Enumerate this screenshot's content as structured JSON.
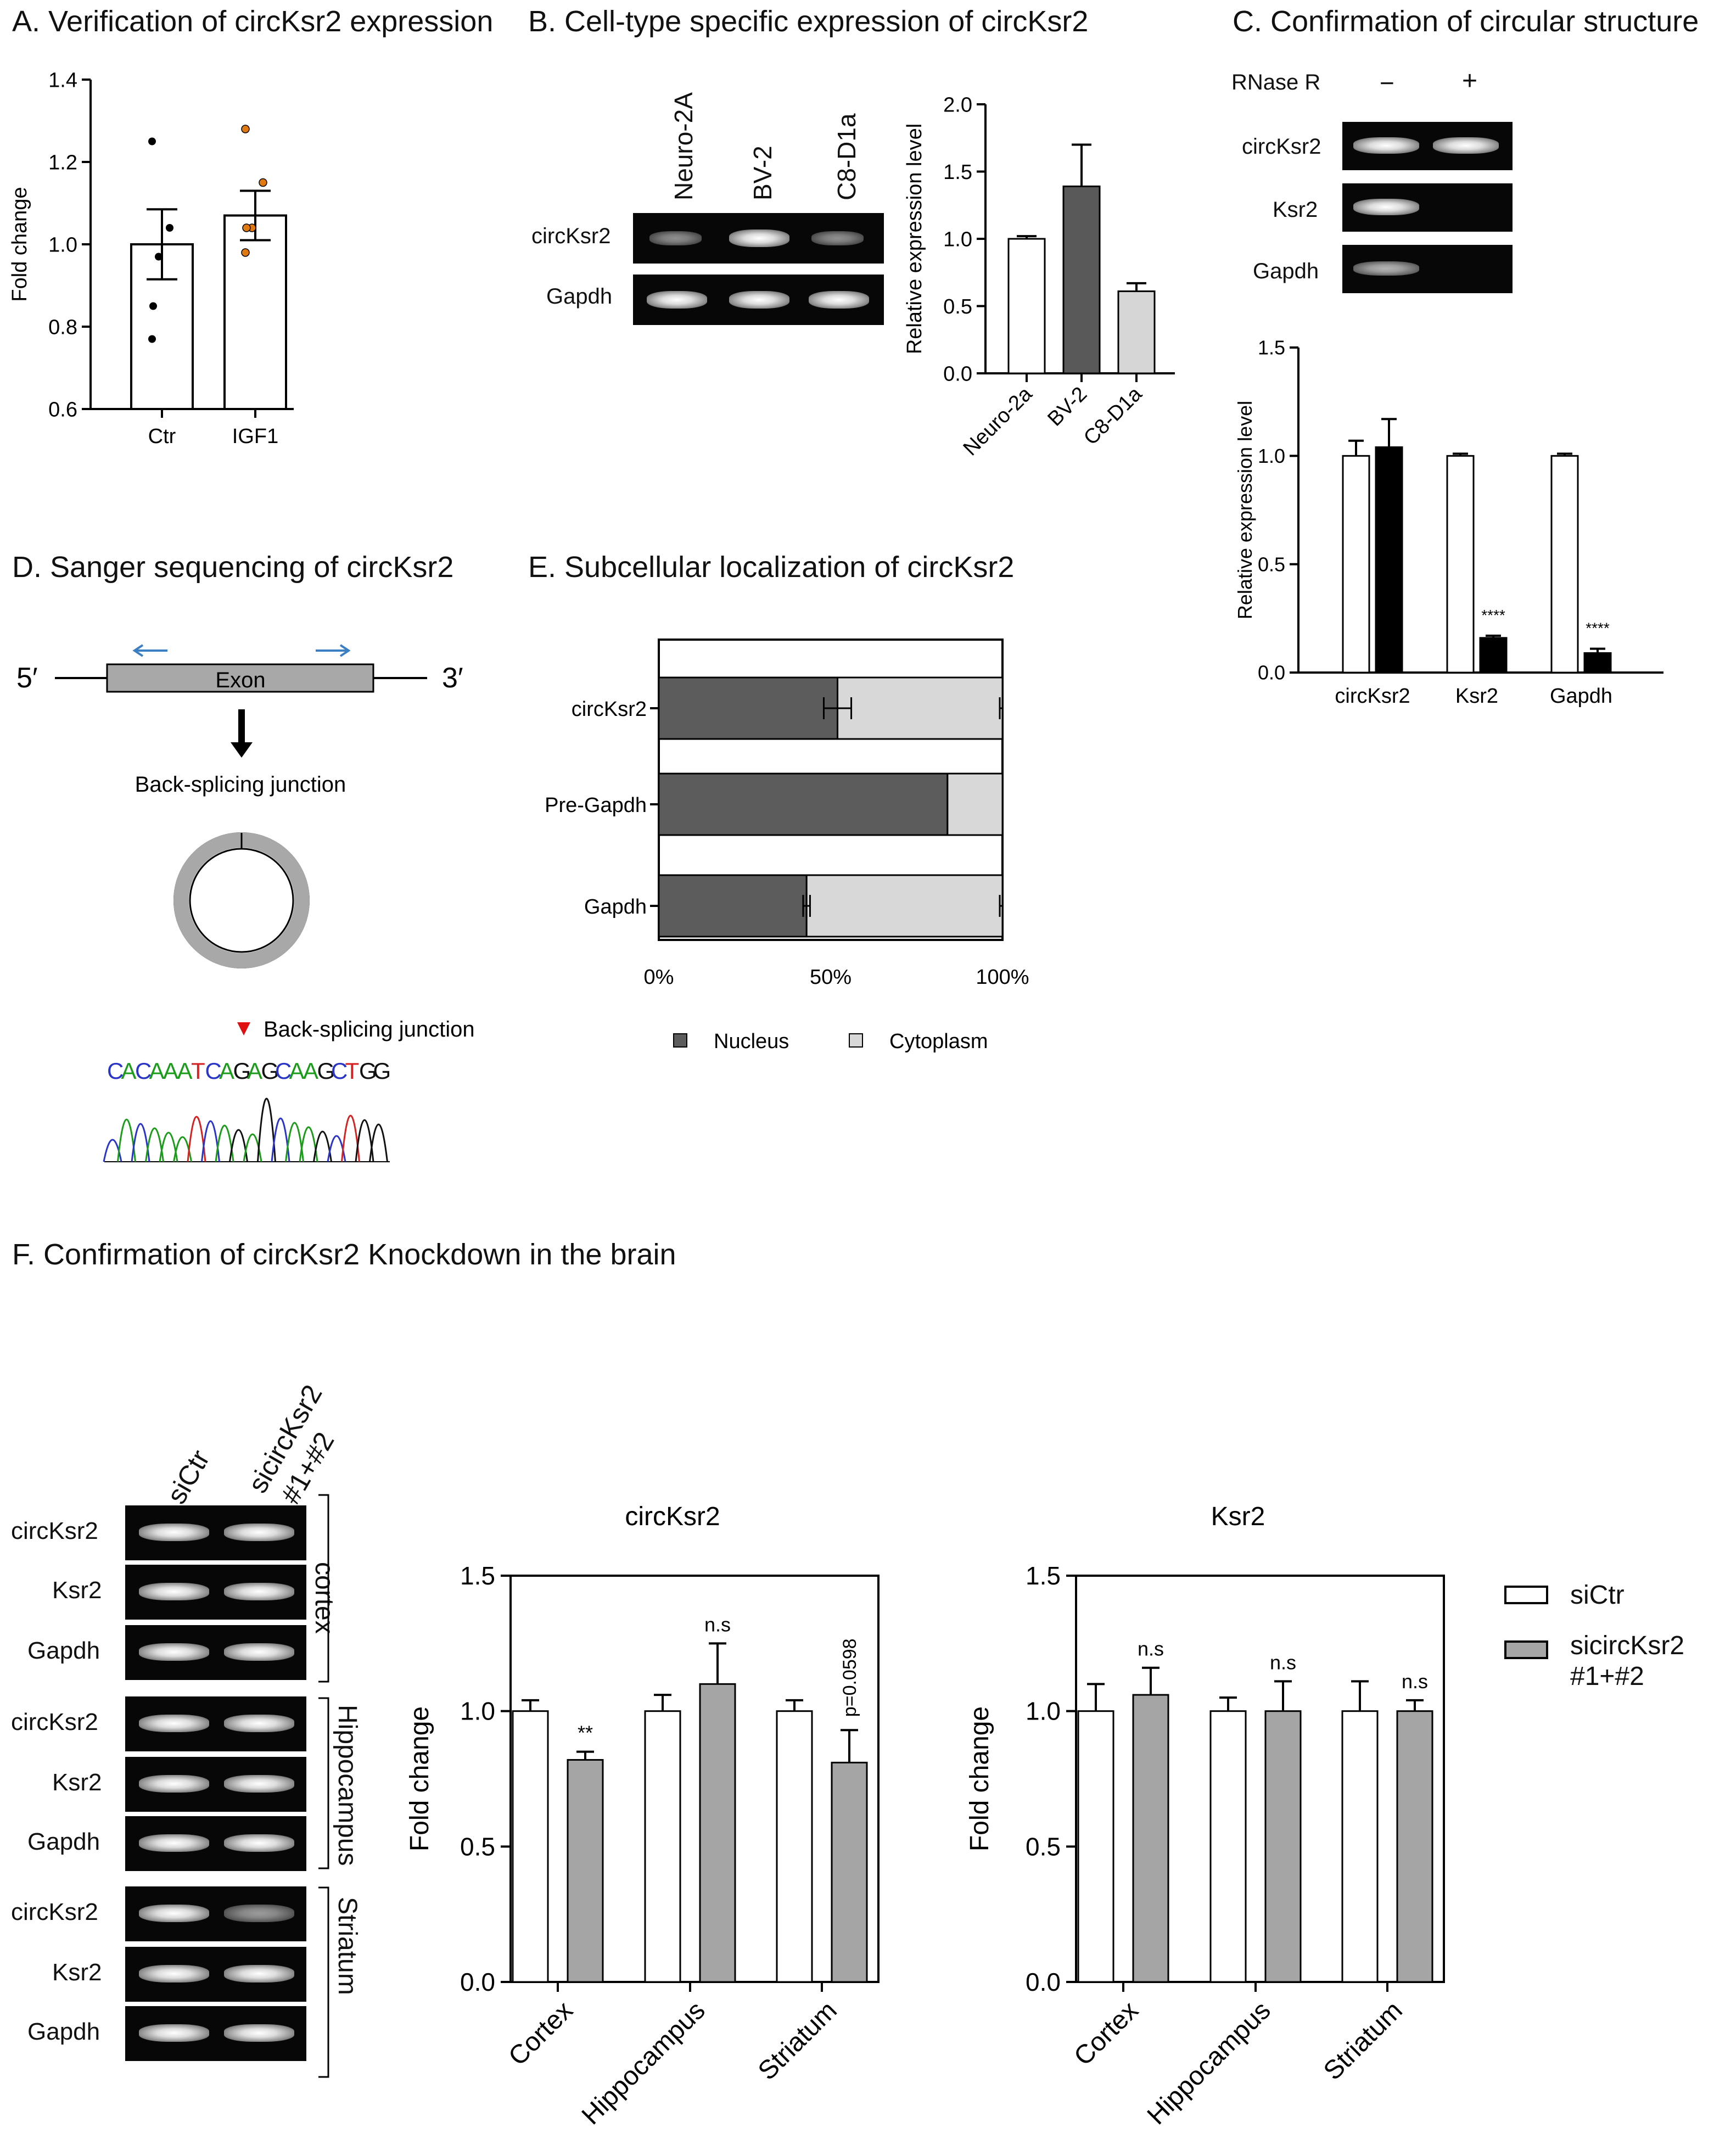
{
  "panels": {
    "A": {
      "title": "A. Verification of circKsr2 expression"
    },
    "B": {
      "title": "B. Cell-type specific expression of circKsr2"
    },
    "C": {
      "title": "C. Confirmation of circular structure"
    },
    "D": {
      "title": "D. Sanger sequencing of circKsr2"
    },
    "E": {
      "title": "E. Subcellular localization of circKsr2"
    },
    "F": {
      "title": "F. Confirmation of circKsr2 Knockdown in the brain"
    }
  },
  "gel_b": {
    "lanes": [
      "Neuro-2A",
      "BV-2",
      "C8-D1a"
    ],
    "rows": [
      "circKsr2",
      "Gapdh"
    ]
  },
  "gel_c": {
    "treatment_label": "RNase R",
    "minus": "−",
    "plus": "+",
    "rows": [
      "circKsr2",
      "Ksr2",
      "Gapdh"
    ]
  },
  "schematic": {
    "five_prime": "5′",
    "three_prime": "3′",
    "exon": "Exon",
    "junction_label": "Back-splicing junction",
    "junction_label2": "Back-splicing junction",
    "sequence": [
      "C",
      "A",
      "C",
      "A",
      "A",
      "A",
      "T",
      "C",
      "A",
      "G",
      "A",
      "G",
      "C",
      "A",
      "A",
      "G",
      "C",
      "T",
      "G",
      "G"
    ],
    "base_colors": {
      "A": "#1a9c1a",
      "C": "#2a35c8",
      "G": "#111111",
      "T": "#d42222"
    }
  },
  "gel_f": {
    "lanes": [
      "siCtr",
      "sicircKsr2",
      "#1+#2"
    ],
    "rows": [
      "circKsr2",
      "Ksr2",
      "Gapdh",
      "circKsr2",
      "Ksr2",
      "Gapdh",
      "circKsr2",
      "Ksr2",
      "Gapdh"
    ],
    "regions": [
      "cortex",
      "Hippocampus",
      "Striatum"
    ]
  },
  "legend_f": {
    "items": [
      "siCtr",
      "sicircKsr2",
      "#1+#2"
    ]
  },
  "chart_data": [
    {
      "id": "A",
      "type": "bar",
      "title": "A. Verification of circKsr2 expression",
      "categories": [
        "Ctr",
        "IGF1"
      ],
      "values": [
        1.0,
        1.07
      ],
      "errors": [
        0.085,
        0.06
      ],
      "points": [
        [
          1.25,
          1.04,
          0.97,
          0.85,
          0.77
        ],
        [
          1.28,
          1.15,
          1.04,
          1.04,
          0.98
        ]
      ],
      "point_colors": [
        "#000000",
        "#e07a10"
      ],
      "ylabel": "Fold change",
      "xlabel": "",
      "ylim": [
        0.6,
        1.4
      ],
      "yticks": [
        "0.6",
        "0.8",
        "1.0",
        "1.2",
        "1.4"
      ]
    },
    {
      "id": "B",
      "type": "bar",
      "categories": [
        "Neuro-2a",
        "BV-2",
        "C8-D1a"
      ],
      "values": [
        1.0,
        1.39,
        0.61
      ],
      "errors": [
        0.02,
        0.31,
        0.06
      ],
      "colors": [
        "#ffffff",
        "#595959",
        "#d6d6d6"
      ],
      "ylabel": "Relative expression level",
      "ylim": [
        0,
        2.0
      ],
      "yticks": [
        "0.0",
        "0.5",
        "1.0",
        "1.5",
        "2.0"
      ]
    },
    {
      "id": "C",
      "type": "bar",
      "categories": [
        "circKsr2",
        "Ksr2",
        "Gapdh"
      ],
      "series": [
        {
          "name": "RNase R −",
          "values": [
            1.0,
            1.0,
            1.0
          ],
          "errors": [
            0.07,
            0.01,
            0.01
          ],
          "color": "#ffffff"
        },
        {
          "name": "RNase R +",
          "values": [
            1.04,
            0.16,
            0.09
          ],
          "errors": [
            0.13,
            0.01,
            0.02
          ],
          "color": "#000000"
        }
      ],
      "annotations": [
        "",
        "****",
        "****"
      ],
      "ylabel": "Relative expression level",
      "ylim": [
        0,
        1.5
      ],
      "yticks": [
        "0.0",
        "0.5",
        "1.0",
        "1.5"
      ]
    },
    {
      "id": "E",
      "type": "bar",
      "orientation": "horizontal-stacked",
      "categories": [
        "circKsr2",
        "Pre-Gapdh",
        "Gapdh"
      ],
      "series": [
        {
          "name": "Nucleus",
          "values": [
            52,
            84,
            43
          ],
          "errors": [
            4,
            0,
            1
          ],
          "color": "#5c5c5c"
        },
        {
          "name": "Cytoplasm",
          "values": [
            48,
            16,
            57
          ],
          "errors": [
            2,
            0,
            1
          ],
          "color": "#d8d8d8"
        }
      ],
      "xticks": [
        "0%",
        "50%",
        "100%"
      ],
      "legend": [
        "Nucleus",
        "Cytoplasm"
      ]
    },
    {
      "id": "F1",
      "type": "bar",
      "title": "circKsr2",
      "categories": [
        "Cortex",
        "Hippocampus",
        "Striatum"
      ],
      "series": [
        {
          "name": "siCtr",
          "values": [
            1.0,
            1.0,
            1.0
          ],
          "errors": [
            0.04,
            0.06,
            0.04
          ],
          "color": "#ffffff"
        },
        {
          "name": "sicircKsr2 #1+#2",
          "values": [
            0.82,
            1.1,
            0.81
          ],
          "errors": [
            0.03,
            0.15,
            0.12
          ],
          "color": "#a5a5a5"
        }
      ],
      "annotations": [
        "**",
        "n.s",
        "p=0.0598"
      ],
      "ylabel": "Fold change",
      "ylim": [
        0,
        1.5
      ],
      "yticks": [
        "0.0",
        "0.5",
        "1.0",
        "1.5"
      ]
    },
    {
      "id": "F2",
      "type": "bar",
      "title": "Ksr2",
      "categories": [
        "Cortex",
        "Hippocampus",
        "Striatum"
      ],
      "series": [
        {
          "name": "siCtr",
          "values": [
            1.0,
            1.0,
            1.0
          ],
          "errors": [
            0.1,
            0.05,
            0.11
          ],
          "color": "#ffffff"
        },
        {
          "name": "sicircKsr2 #1+#2",
          "values": [
            1.06,
            1.0,
            1.0
          ],
          "errors": [
            0.1,
            0.11,
            0.04
          ],
          "color": "#a5a5a5"
        }
      ],
      "annotations": [
        "n.s",
        "n.s",
        "n.s"
      ],
      "ylabel": "Fold change",
      "ylim": [
        0,
        1.5
      ],
      "yticks": [
        "0.0",
        "0.5",
        "1.0",
        "1.5"
      ]
    }
  ]
}
